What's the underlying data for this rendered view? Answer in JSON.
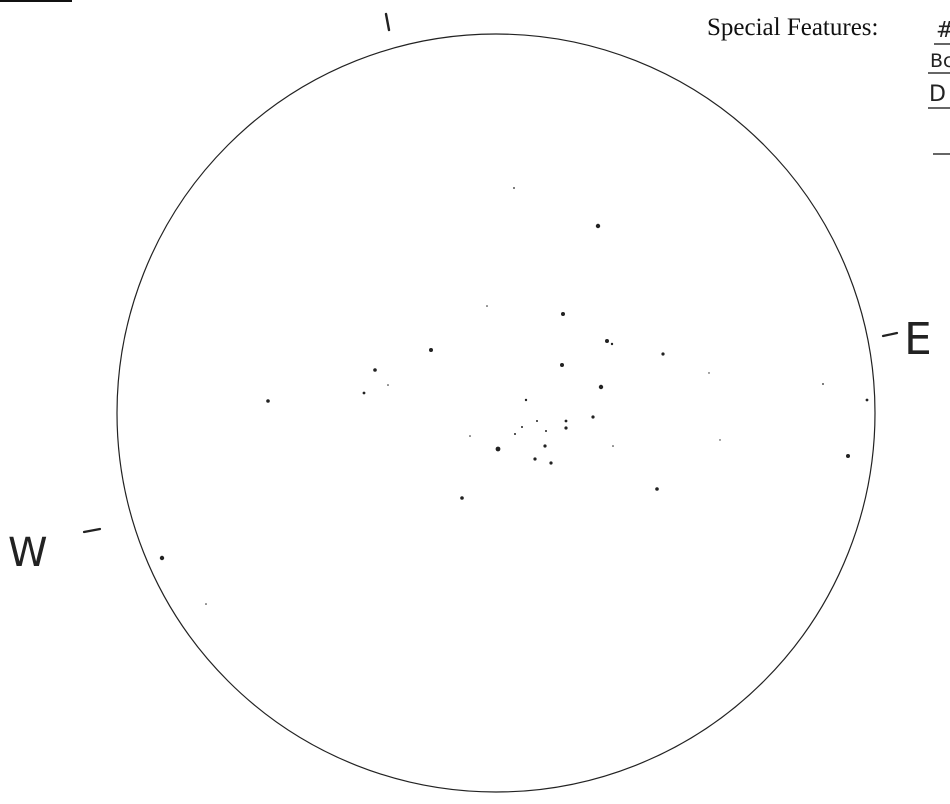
{
  "header": {
    "special_features_label": "Special Features:",
    "feature_lines": [
      "#",
      "Bc",
      "D",
      "-"
    ]
  },
  "field_of_view": {
    "north_mark": "I",
    "east_label": "E",
    "west_label": "W",
    "tick_mark": "-",
    "ink_color": "#222222",
    "star_count": 37
  }
}
